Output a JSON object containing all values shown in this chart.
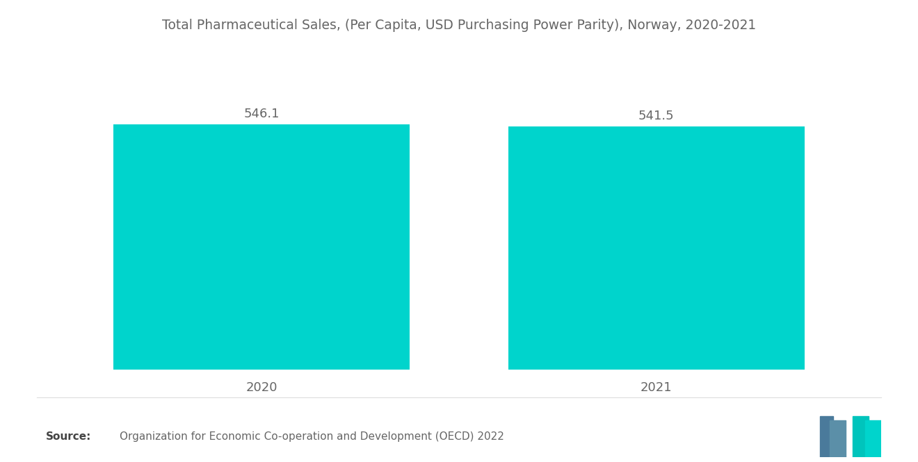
{
  "title": "Total Pharmaceutical Sales, (Per Capita, USD Purchasing Power Parity), Norway, 2020-2021",
  "categories": [
    "2020",
    "2021"
  ],
  "values": [
    546.1,
    541.5
  ],
  "bar_color": "#00D4CC",
  "background_color": "#ffffff",
  "text_color": "#666666",
  "title_fontsize": 13.5,
  "label_fontsize": 13,
  "value_fontsize": 13,
  "source_text": "Organization for Economic Co-operation and Development (OECD) 2022",
  "source_label": "Source:",
  "ylim": [
    0,
    700
  ],
  "bar_width": 0.6,
  "x_positions": [
    0.3,
    1.1
  ]
}
